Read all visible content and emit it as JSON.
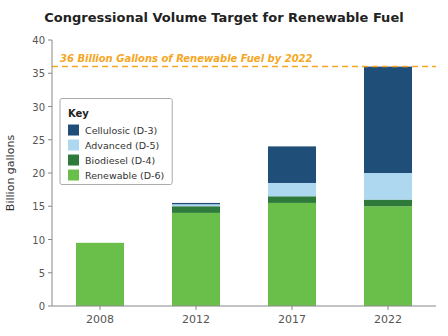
{
  "chart_data": {
    "type": "bar",
    "stacked": true,
    "title": "Congressional Volume Target for Renewable Fuel",
    "y_label": "Billion gallons",
    "categories": [
      "2008",
      "2012",
      "2017",
      "2022"
    ],
    "series": [
      {
        "name": "Renewable (D-6)",
        "color": "#6abf4b",
        "values": [
          9.5,
          14.0,
          15.5,
          15.0
        ]
      },
      {
        "name": "Biodiesel (D-4)",
        "color": "#2d7a3a",
        "values": [
          0.0,
          1.0,
          1.0,
          1.0
        ]
      },
      {
        "name": "Advanced (D-5)",
        "color": "#add8f0",
        "values": [
          0.0,
          0.3,
          2.0,
          4.0
        ]
      },
      {
        "name": "Cellulosic (D-3)",
        "color": "#1f4e79",
        "values": [
          0.0,
          0.2,
          5.5,
          16.0
        ]
      }
    ],
    "annotations": [
      {
        "text": "36 Billion Gallons of Renewable Fuel by 2022",
        "y": 36,
        "color": "#f5a623",
        "line_style": "dashed"
      }
    ],
    "ylim": [
      0,
      40
    ],
    "yticks": [
      0,
      5,
      10,
      15,
      20,
      25,
      30,
      35,
      40
    ],
    "grid": false,
    "legend": "upper left",
    "legend_title": "Key"
  }
}
